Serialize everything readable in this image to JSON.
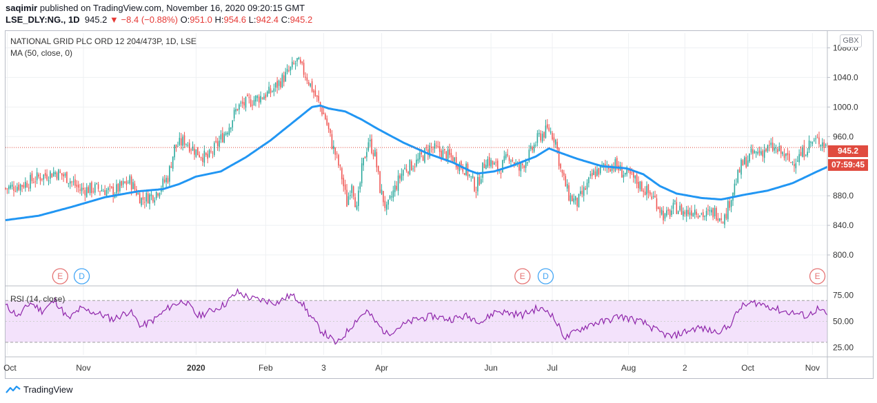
{
  "header": {
    "publisher": "saqimir",
    "published_text": "published on TradingView.com, November 16, 2020 09:20:15 GMT",
    "symbol": "LSE_DLY:NG., 1D",
    "last": "945.2",
    "change_arrow": "▼",
    "change": "−8.4 (−0.88%)",
    "o_label": "O:",
    "o_value": "951.0",
    "h_label": "H:",
    "h_value": "954.6",
    "l_label": "L:",
    "l_value": "942.4",
    "c_label": "C:",
    "c_value": "945.2"
  },
  "legend": {
    "instrument": "NATIONAL GRID PLC ORD 12 204/473P, 1D, LSE",
    "ma": "MA (50, close, 0)",
    "rsi": "RSI (14, close)"
  },
  "currency": "GBX",
  "price_tag": "945.2",
  "countdown_tag": "07:59:45",
  "footer": {
    "brand": "TradingView"
  },
  "colors": {
    "up": "#26a69a",
    "down": "#ef5350",
    "ma": "#2196f3",
    "rsi": "#8e24aa",
    "rsi_band": "#f3e2fb",
    "price_tag": "#e04b3f",
    "event_e": "#e57373",
    "event_d": "#42a5f5"
  },
  "chart_data": [
    {
      "type": "candlestick",
      "title": "NATIONAL GRID PLC ORD 12 204/473P, 1D, LSE",
      "ylim": [
        760,
        1100
      ],
      "y_ticks": [
        800,
        840,
        880,
        920,
        960,
        1000,
        1040,
        1080
      ],
      "y_tick_labels": [
        "800.0",
        "840.0",
        "880.0",
        "",
        "960.0",
        "1000.0",
        "1040.0",
        "1080.0"
      ],
      "x_tick_labels": [
        "Oct",
        "Nov",
        "2020",
        "Feb",
        "3",
        "Apr",
        "Jun",
        "Jul",
        "Aug",
        "2",
        "Oct",
        "Nov"
      ],
      "x_tick_index": [
        1,
        47,
        115,
        157,
        192,
        227,
        293,
        330,
        376,
        410,
        448,
        487
      ],
      "last_close": 945.2,
      "close_path_anchors": [
        [
          0,
          890
        ],
        [
          10,
          895
        ],
        [
          20,
          905
        ],
        [
          30,
          912
        ],
        [
          37,
          905
        ],
        [
          45,
          888
        ],
        [
          55,
          890
        ],
        [
          65,
          885
        ],
        [
          75,
          900
        ],
        [
          82,
          875
        ],
        [
          90,
          882
        ],
        [
          98,
          905
        ],
        [
          102,
          945
        ],
        [
          108,
          955
        ],
        [
          115,
          940
        ],
        [
          122,
          930
        ],
        [
          128,
          950
        ],
        [
          135,
          975
        ],
        [
          140,
          1000
        ],
        [
          150,
          1010
        ],
        [
          160,
          1020
        ],
        [
          170,
          1045
        ],
        [
          176,
          1062
        ],
        [
          182,
          1040
        ],
        [
          188,
          1010
        ],
        [
          193,
          985
        ],
        [
          197,
          950
        ],
        [
          200,
          930
        ],
        [
          203,
          905
        ],
        [
          206,
          870
        ],
        [
          209,
          900
        ],
        [
          212,
          860
        ],
        [
          215,
          915
        ],
        [
          219,
          955
        ],
        [
          223,
          935
        ],
        [
          226,
          890
        ],
        [
          230,
          860
        ],
        [
          234,
          885
        ],
        [
          240,
          915
        ],
        [
          248,
          925
        ],
        [
          256,
          945
        ],
        [
          262,
          940
        ],
        [
          270,
          930
        ],
        [
          278,
          915
        ],
        [
          284,
          890
        ],
        [
          290,
          930
        ],
        [
          298,
          915
        ],
        [
          304,
          935
        ],
        [
          310,
          915
        ],
        [
          316,
          935
        ],
        [
          322,
          960
        ],
        [
          328,
          970
        ],
        [
          332,
          955
        ],
        [
          335,
          915
        ],
        [
          340,
          880
        ],
        [
          345,
          870
        ],
        [
          350,
          890
        ],
        [
          355,
          910
        ],
        [
          362,
          920
        ],
        [
          368,
          922
        ],
        [
          372,
          912
        ],
        [
          378,
          905
        ],
        [
          385,
          890
        ],
        [
          392,
          875
        ],
        [
          398,
          850
        ],
        [
          404,
          865
        ],
        [
          410,
          857
        ],
        [
          416,
          862
        ],
        [
          422,
          853
        ],
        [
          428,
          858
        ],
        [
          434,
          850
        ],
        [
          438,
          880
        ],
        [
          444,
          920
        ],
        [
          450,
          935
        ],
        [
          456,
          940
        ],
        [
          462,
          945
        ],
        [
          468,
          938
        ],
        [
          474,
          925
        ],
        [
          480,
          935
        ],
        [
          486,
          952
        ],
        [
          492,
          955
        ],
        [
          496,
          945
        ]
      ],
      "ma50_anchors": [
        [
          0,
          847
        ],
        [
          20,
          853
        ],
        [
          40,
          865
        ],
        [
          60,
          878
        ],
        [
          80,
          886
        ],
        [
          95,
          889
        ],
        [
          105,
          896
        ],
        [
          115,
          906
        ],
        [
          130,
          913
        ],
        [
          145,
          932
        ],
        [
          160,
          955
        ],
        [
          175,
          982
        ],
        [
          185,
          1000
        ],
        [
          190,
          1002
        ],
        [
          195,
          998
        ],
        [
          205,
          994
        ],
        [
          215,
          983
        ],
        [
          225,
          970
        ],
        [
          240,
          952
        ],
        [
          255,
          937
        ],
        [
          270,
          925
        ],
        [
          280,
          914
        ],
        [
          285,
          910
        ],
        [
          295,
          913
        ],
        [
          305,
          920
        ],
        [
          320,
          933
        ],
        [
          328,
          944
        ],
        [
          335,
          938
        ],
        [
          345,
          930
        ],
        [
          360,
          920
        ],
        [
          375,
          917
        ],
        [
          385,
          909
        ],
        [
          395,
          893
        ],
        [
          405,
          883
        ],
        [
          420,
          877
        ],
        [
          432,
          875
        ],
        [
          445,
          881
        ],
        [
          460,
          887
        ],
        [
          475,
          897
        ],
        [
          490,
          913
        ],
        [
          496,
          919
        ]
      ]
    },
    {
      "type": "line",
      "title": "RSI (14, close)",
      "ylim": [
        18,
        82
      ],
      "y_ticks": [
        25,
        50,
        75
      ],
      "y_tick_labels": [
        "25.00",
        "50.00",
        "75.00"
      ],
      "band": [
        30,
        70
      ],
      "rsi_anchors": [
        [
          0,
          65
        ],
        [
          8,
          55
        ],
        [
          15,
          68
        ],
        [
          22,
          60
        ],
        [
          30,
          70
        ],
        [
          38,
          52
        ],
        [
          45,
          62
        ],
        [
          55,
          58
        ],
        [
          65,
          52
        ],
        [
          75,
          60
        ],
        [
          82,
          45
        ],
        [
          90,
          52
        ],
        [
          100,
          65
        ],
        [
          108,
          70
        ],
        [
          116,
          55
        ],
        [
          124,
          60
        ],
        [
          132,
          66
        ],
        [
          140,
          78
        ],
        [
          148,
          72
        ],
        [
          156,
          70
        ],
        [
          164,
          68
        ],
        [
          172,
          75
        ],
        [
          178,
          70
        ],
        [
          184,
          55
        ],
        [
          190,
          42
        ],
        [
          196,
          34
        ],
        [
          200,
          28
        ],
        [
          206,
          40
        ],
        [
          212,
          52
        ],
        [
          218,
          60
        ],
        [
          224,
          48
        ],
        [
          230,
          38
        ],
        [
          238,
          45
        ],
        [
          248,
          52
        ],
        [
          258,
          55
        ],
        [
          268,
          52
        ],
        [
          278,
          55
        ],
        [
          288,
          50
        ],
        [
          296,
          60
        ],
        [
          304,
          58
        ],
        [
          312,
          56
        ],
        [
          320,
          62
        ],
        [
          328,
          60
        ],
        [
          332,
          50
        ],
        [
          338,
          34
        ],
        [
          346,
          42
        ],
        [
          354,
          48
        ],
        [
          362,
          50
        ],
        [
          370,
          55
        ],
        [
          378,
          52
        ],
        [
          386,
          48
        ],
        [
          394,
          40
        ],
        [
          402,
          35
        ],
        [
          410,
          40
        ],
        [
          418,
          44
        ],
        [
          428,
          40
        ],
        [
          436,
          44
        ],
        [
          444,
          64
        ],
        [
          452,
          68
        ],
        [
          460,
          65
        ],
        [
          468,
          60
        ],
        [
          476,
          58
        ],
        [
          484,
          55
        ],
        [
          490,
          62
        ],
        [
          496,
          56
        ]
      ]
    }
  ],
  "events": [
    {
      "label": "E",
      "idx": 33
    },
    {
      "label": "D",
      "idx": 46
    },
    {
      "label": "E",
      "idx": 312
    },
    {
      "label": "D",
      "idx": 326
    },
    {
      "label": "E",
      "idx": 490
    }
  ]
}
